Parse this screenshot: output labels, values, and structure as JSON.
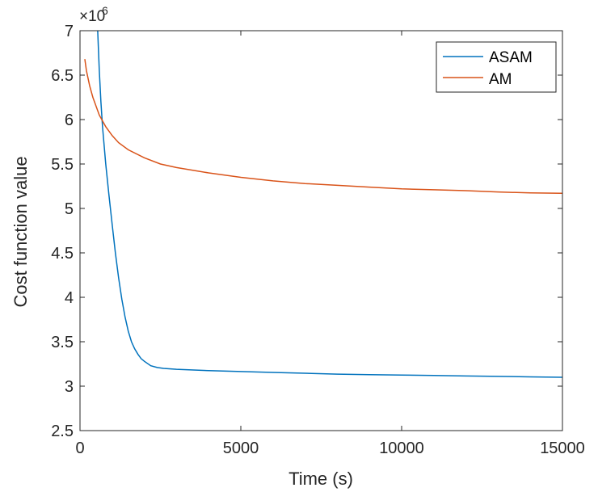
{
  "chart_data": {
    "type": "line",
    "xlabel": "Time (s)",
    "ylabel": "Cost function value",
    "xlim": [
      0,
      15000
    ],
    "ylim": [
      2.5,
      7
    ],
    "x_ticks": [
      "0",
      "5000",
      "10000",
      "15000"
    ],
    "y_ticks": [
      "2.5",
      "3",
      "3.5",
      "4",
      "4.5",
      "5",
      "5.5",
      "6",
      "6.5",
      "7"
    ],
    "y_multiplier": {
      "base": "×10",
      "exponent": "6"
    },
    "grid": false,
    "legend_position": "top-right",
    "series": [
      {
        "name": "ASAM",
        "color": "#0072BD",
        "points": [
          [
            550,
            7.0
          ],
          [
            600,
            6.55
          ],
          [
            650,
            6.2
          ],
          [
            700,
            5.92
          ],
          [
            800,
            5.5
          ],
          [
            900,
            5.15
          ],
          [
            1000,
            4.82
          ],
          [
            1100,
            4.5
          ],
          [
            1200,
            4.22
          ],
          [
            1300,
            3.98
          ],
          [
            1400,
            3.78
          ],
          [
            1500,
            3.62
          ],
          [
            1600,
            3.5
          ],
          [
            1700,
            3.42
          ],
          [
            1800,
            3.36
          ],
          [
            1900,
            3.31
          ],
          [
            2000,
            3.28
          ],
          [
            2200,
            3.23
          ],
          [
            2400,
            3.21
          ],
          [
            2600,
            3.2
          ],
          [
            3000,
            3.19
          ],
          [
            4000,
            3.175
          ],
          [
            5000,
            3.165
          ],
          [
            6000,
            3.155
          ],
          [
            7000,
            3.145
          ],
          [
            8000,
            3.135
          ],
          [
            9000,
            3.13
          ],
          [
            10000,
            3.125
          ],
          [
            11000,
            3.12
          ],
          [
            12000,
            3.115
          ],
          [
            13000,
            3.11
          ],
          [
            14000,
            3.105
          ],
          [
            15000,
            3.1
          ]
        ]
      },
      {
        "name": "AM",
        "color": "#D95319",
        "points": [
          [
            150,
            6.68
          ],
          [
            200,
            6.55
          ],
          [
            300,
            6.38
          ],
          [
            400,
            6.25
          ],
          [
            500,
            6.15
          ],
          [
            600,
            6.05
          ],
          [
            800,
            5.92
          ],
          [
            1000,
            5.82
          ],
          [
            1200,
            5.74
          ],
          [
            1500,
            5.66
          ],
          [
            2000,
            5.57
          ],
          [
            2500,
            5.5
          ],
          [
            3000,
            5.46
          ],
          [
            4000,
            5.4
          ],
          [
            5000,
            5.35
          ],
          [
            6000,
            5.31
          ],
          [
            7000,
            5.28
          ],
          [
            8000,
            5.26
          ],
          [
            9000,
            5.24
          ],
          [
            10000,
            5.22
          ],
          [
            11000,
            5.21
          ],
          [
            12000,
            5.2
          ],
          [
            13000,
            5.185
          ],
          [
            14000,
            5.175
          ],
          [
            15000,
            5.17
          ]
        ]
      }
    ]
  }
}
